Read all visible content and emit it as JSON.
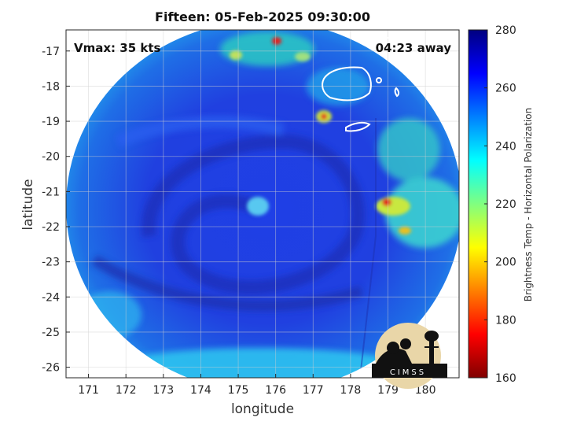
{
  "title": "Fifteen: 05-Feb-2025 09:30:00",
  "annotations": {
    "vmax": "Vmax: 35 kts",
    "time_away": "04:23 away"
  },
  "axes": {
    "xlabel": "longitude",
    "ylabel": "latitude",
    "xticks": [
      "171",
      "172",
      "173",
      "174",
      "175",
      "176",
      "177",
      "178",
      "179",
      "180"
    ],
    "yticks": [
      "-17",
      "-18",
      "-19",
      "-20",
      "-21",
      "-22",
      "-23",
      "-24",
      "-25",
      "-26"
    ]
  },
  "colorbar": {
    "label": "Brightness Temp - Horizontal Polarization",
    "ticks": [
      "280",
      "260",
      "240",
      "220",
      "200",
      "180",
      "160"
    ],
    "min": 160,
    "max": 280,
    "colormap": "jet"
  },
  "logo": {
    "text": "CIMSS"
  },
  "map": {
    "lon_range": [
      170.4,
      180.9
    ],
    "lat_range": [
      -26.3,
      -16.4
    ],
    "grid": true,
    "colors": {
      "background_swath": "#2a3ddc",
      "land_outline": "#ffffff"
    }
  }
}
